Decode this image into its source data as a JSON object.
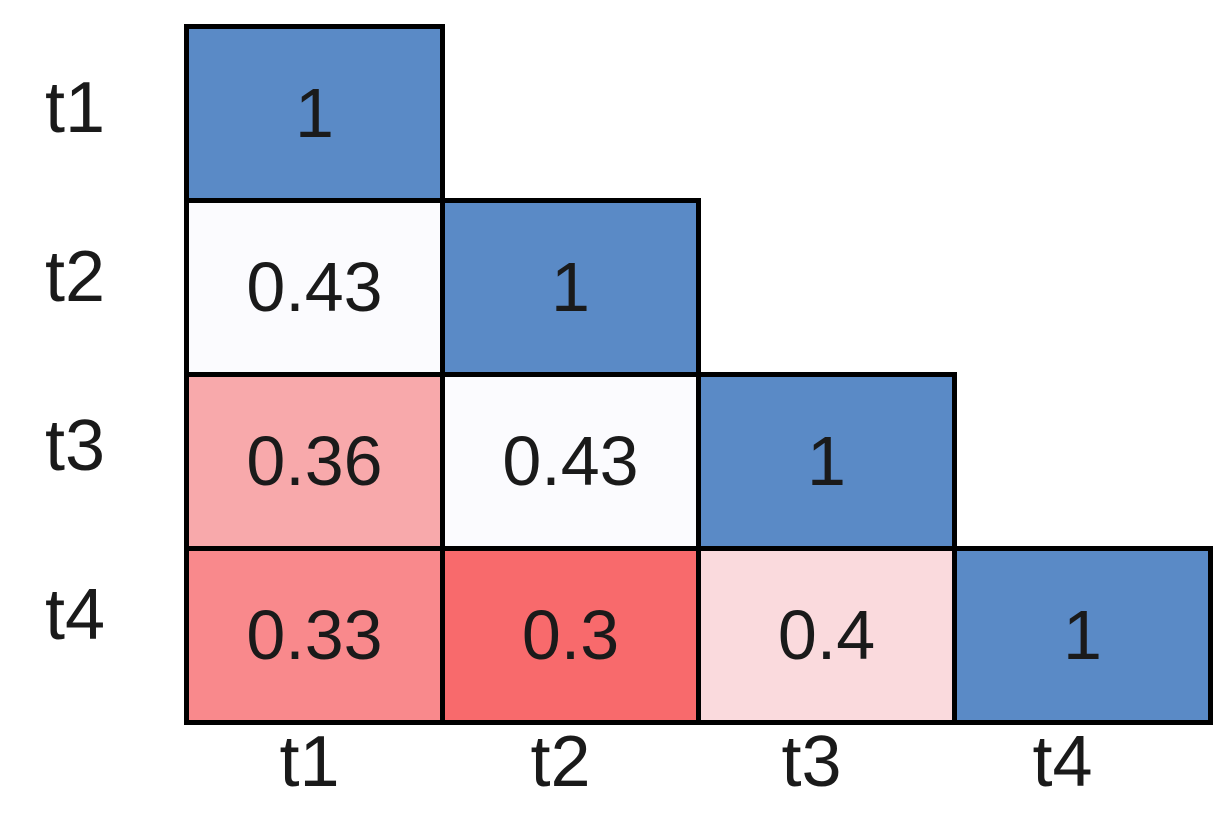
{
  "chart_data": {
    "type": "heatmap",
    "title": "",
    "description": "Lower-triangular correlation matrix heatmap",
    "row_labels": [
      "t1",
      "t2",
      "t3",
      "t4"
    ],
    "col_labels": [
      "t1",
      "t2",
      "t3",
      "t4"
    ],
    "matrix": [
      [
        1,
        null,
        null,
        null
      ],
      [
        0.43,
        1,
        null,
        null
      ],
      [
        0.36,
        0.43,
        1,
        null
      ],
      [
        0.33,
        0.3,
        0.4,
        1
      ]
    ],
    "cell_display": [
      [
        "1",
        "",
        "",
        ""
      ],
      [
        "0.43",
        "1",
        "",
        ""
      ],
      [
        "0.36",
        "0.43",
        "1",
        ""
      ],
      [
        "0.33",
        "0.3",
        "0.4",
        "1"
      ]
    ],
    "cell_colors": [
      [
        "#5a8ac6",
        "",
        "",
        ""
      ],
      [
        "#fbfbfe",
        "#5a8ac6",
        "",
        ""
      ],
      [
        "#f8a9ab",
        "#fbfbfe",
        "#5a8ac6",
        ""
      ],
      [
        "#f9898c",
        "#f86a6c",
        "#fadadd",
        "#5a8ac6"
      ]
    ],
    "colorscale": {
      "min_value": 0.3,
      "max_value": 1,
      "min_color": "#f8696b",
      "mid_color": "#fcfcff",
      "max_color": "#5a8ac6"
    },
    "grid_border_color": "#000000",
    "text_color": "#1a1a1a",
    "background_color": "#ffffff",
    "legend": "none",
    "axes": {
      "x_label": "",
      "y_label": "",
      "y_tick_side": "left",
      "x_tick_side": "bottom"
    }
  }
}
